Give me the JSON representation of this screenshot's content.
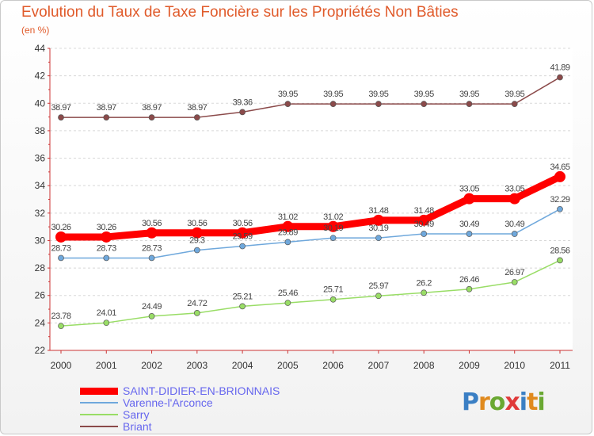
{
  "chart_data": {
    "type": "line",
    "title": "Evolution du Taux de Taxe Foncière sur les Propriétés Non Bâties",
    "subtitle": "(en %)",
    "xlabel": "",
    "ylabel": "(en %)",
    "ylim": [
      22,
      44
    ],
    "yticks": [
      "22",
      "24",
      "26",
      "28",
      "30",
      "32",
      "34",
      "36",
      "38",
      "40",
      "42",
      "44"
    ],
    "categories": [
      "2000",
      "2001",
      "2002",
      "2003",
      "2004",
      "2005",
      "2006",
      "2007",
      "2008",
      "2009",
      "2010",
      "2011"
    ],
    "series": [
      {
        "name": "SAINT-DIDIER-EN-BRIONNAIS",
        "color": "#ff0000",
        "values": [
          30.26,
          30.26,
          30.56,
          30.56,
          30.56,
          31.02,
          31.02,
          31.48,
          31.48,
          33.05,
          33.05,
          34.65
        ],
        "labels": [
          "30.26",
          "30.26",
          "30.56",
          "30.56",
          "30.56",
          "31.02",
          "31.02",
          "31.48",
          "31.48",
          "33.05",
          "33.05",
          "34.65"
        ]
      },
      {
        "name": "Varenne-l'Arconce",
        "color": "#6fa8dc",
        "values": [
          28.73,
          28.73,
          28.73,
          29.3,
          29.59,
          29.89,
          30.19,
          30.19,
          30.49,
          30.49,
          30.49,
          32.29
        ],
        "labels": [
          "28.73",
          "28.73",
          "28.73",
          "29.3",
          "29.59",
          "29.89",
          "30.19",
          "30.19",
          "30.49",
          "30.49",
          "30.49",
          "32.29"
        ]
      },
      {
        "name": "Sarry",
        "color": "#99dd66",
        "values": [
          23.78,
          24.01,
          24.49,
          24.72,
          25.21,
          25.46,
          25.71,
          25.97,
          26.2,
          26.46,
          26.97,
          28.56
        ],
        "labels": [
          "23.78",
          "24.01",
          "24.49",
          "24.72",
          "25.21",
          "25.46",
          "25.71",
          "25.97",
          "26.2",
          "26.46",
          "26.97",
          "28.56"
        ]
      },
      {
        "name": "Briant",
        "color": "#8b4a4a",
        "values": [
          38.97,
          38.97,
          38.97,
          38.97,
          39.36,
          39.95,
          39.95,
          39.95,
          39.95,
          39.95,
          39.95,
          41.89
        ],
        "labels": [
          "38.97",
          "38.97",
          "38.97",
          "38.97",
          "39.36",
          "39.95",
          "39.95",
          "39.95",
          "39.95",
          "39.95",
          "39.95",
          "41.89"
        ]
      }
    ],
    "grid": "horizontal dashed",
    "legend": "bottom-left"
  },
  "logo": {
    "text": "Proxiti"
  }
}
